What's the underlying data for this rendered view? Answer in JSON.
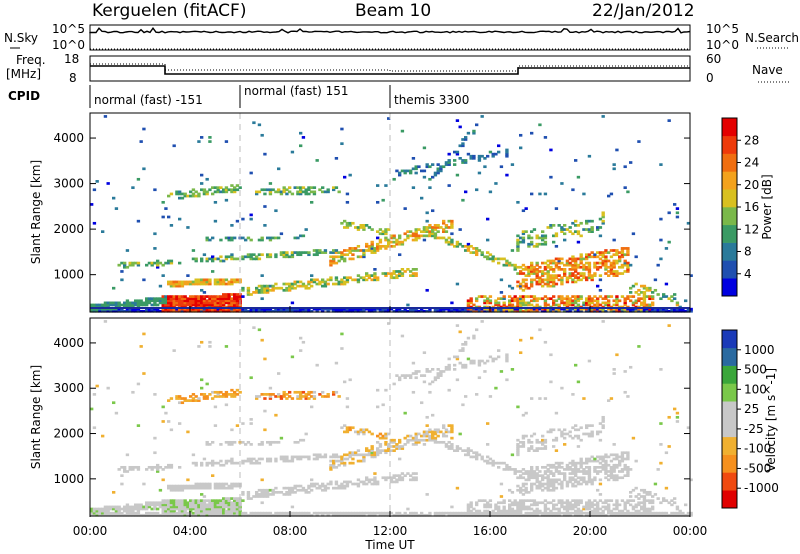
{
  "header": {
    "station": "Kerguelen (fitACF)",
    "beam": "Beam 10",
    "date": "22/Jan/2012"
  },
  "top_panels": {
    "nsky_label": "N.Sky",
    "nsearch_label": "N.Search",
    "count_ticks": [
      "10^5",
      "10^0"
    ],
    "freq_label_1": "Freq.",
    "freq_label_2": "[MHz]",
    "freq_ticks": [
      "18",
      "8"
    ],
    "nave_label": "Nave",
    "nave_ticks": [
      "60",
      "0"
    ],
    "cpid_label": "CPID",
    "cpid_segments": [
      {
        "label": "normal (fast) -151",
        "start_hour": 0,
        "end_hour": 6
      },
      {
        "label": "normal (fast) 151",
        "start_hour": 6,
        "end_hour": 12
      },
      {
        "label": "themis 3300",
        "start_hour": 12,
        "end_hour": 24
      }
    ]
  },
  "chart_data": [
    {
      "type": "heatmap",
      "title": "Power",
      "xlabel": "Time UT",
      "ylabel": "Slant Range [km]",
      "xlim_hours": [
        0,
        24
      ],
      "ylim": [
        180,
        4550
      ],
      "x_tick_labels": [
        "00:00",
        "04:00",
        "08:00",
        "12:00",
        "16:00",
        "20:00",
        "00:00"
      ],
      "y_tick_values": [
        1000,
        2000,
        3000,
        4000
      ],
      "colorbar": {
        "label": "Power [dB]",
        "ticks": [
          "28",
          "24",
          "20",
          "16",
          "12",
          "8",
          "4"
        ],
        "range": [
          0,
          30
        ],
        "colors": [
          "#0000e0",
          "#1f4fb0",
          "#2a7a9a",
          "#3a9a64",
          "#7ab84a",
          "#d8c020",
          "#f3a21d",
          "#f06e10",
          "#ee3a0a",
          "#e40000"
        ]
      }
    },
    {
      "type": "heatmap",
      "title": "Velocity",
      "xlabel": "Time UT",
      "ylabel": "Slant Range [km]",
      "xlim_hours": [
        0,
        24
      ],
      "ylim": [
        180,
        4550
      ],
      "x_tick_labels": [
        "00:00",
        "04:00",
        "08:00",
        "12:00",
        "16:00",
        "20:00",
        "00:00"
      ],
      "y_tick_values": [
        1000,
        2000,
        3000,
        4000
      ],
      "colorbar": {
        "label": "Velocity [m s^-1]",
        "ticks": [
          "1000",
          "500",
          "100",
          "25",
          "-25",
          "-100",
          "-500",
          "-1000"
        ],
        "range": [
          -1200,
          1200
        ],
        "colors": [
          "#e00000",
          "#f04a10",
          "#f5901e",
          "#f0b030",
          "#c8c8c8",
          "#c8c8c8",
          "#7ac84a",
          "#3aa63a",
          "#2a6aa0",
          "#1a3ab8"
        ]
      }
    }
  ]
}
